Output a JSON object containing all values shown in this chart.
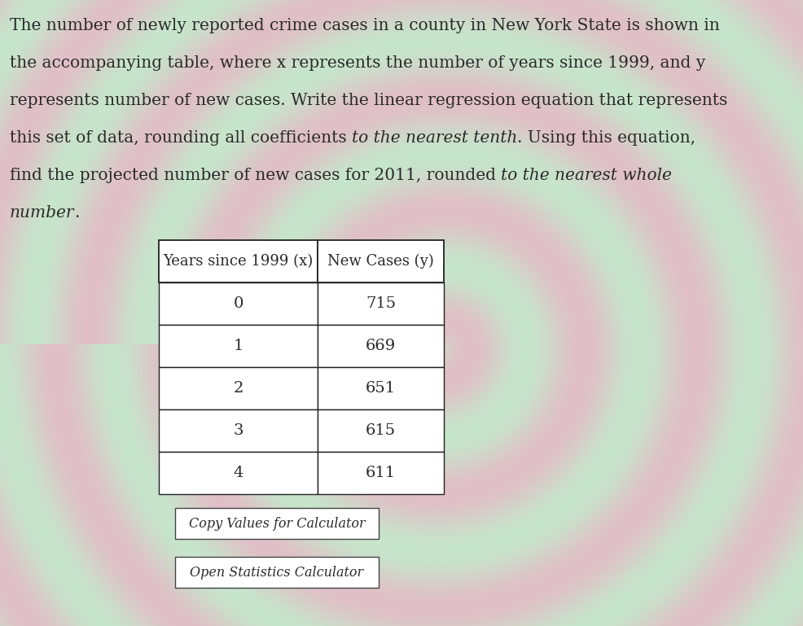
{
  "text_color": "#2a2a2a",
  "table_bg": "white",
  "table_border": "#222222",
  "btn_bg": "white",
  "btn_border": "#444444",
  "font_size_para": 14.5,
  "font_size_table_header": 13.0,
  "font_size_table_data": 14.0,
  "font_size_btn": 11.5,
  "col1_header": "Years since 1999 (x)",
  "col2_header": "New Cases (y)",
  "x_values": [
    "0",
    "1",
    "2",
    "3",
    "4"
  ],
  "y_values": [
    "715",
    "669",
    "651",
    "615",
    "611"
  ],
  "btn1": "Copy Values for Calculator",
  "btn2": "Open Statistics Calculator",
  "lines": [
    [
      [
        "The number of newly reported crime cases in a county in New York State is shown in",
        "normal"
      ]
    ],
    [
      [
        "the accompanying table, where x represents the number of years since 1999, and y",
        "normal"
      ]
    ],
    [
      [
        "represents number of new cases. Write the linear regression equation that represents",
        "normal"
      ]
    ],
    [
      [
        "this set of data, rounding all coefficients ",
        "normal"
      ],
      [
        "to the nearest tenth",
        "italic"
      ],
      [
        ". Using this equation,",
        "normal"
      ]
    ],
    [
      [
        "find the projected number of new cases for 2011, rounded ",
        "normal"
      ],
      [
        "to the nearest whole",
        "italic"
      ]
    ],
    [
      [
        "number",
        "italic"
      ],
      [
        ".",
        "normal"
      ]
    ]
  ]
}
